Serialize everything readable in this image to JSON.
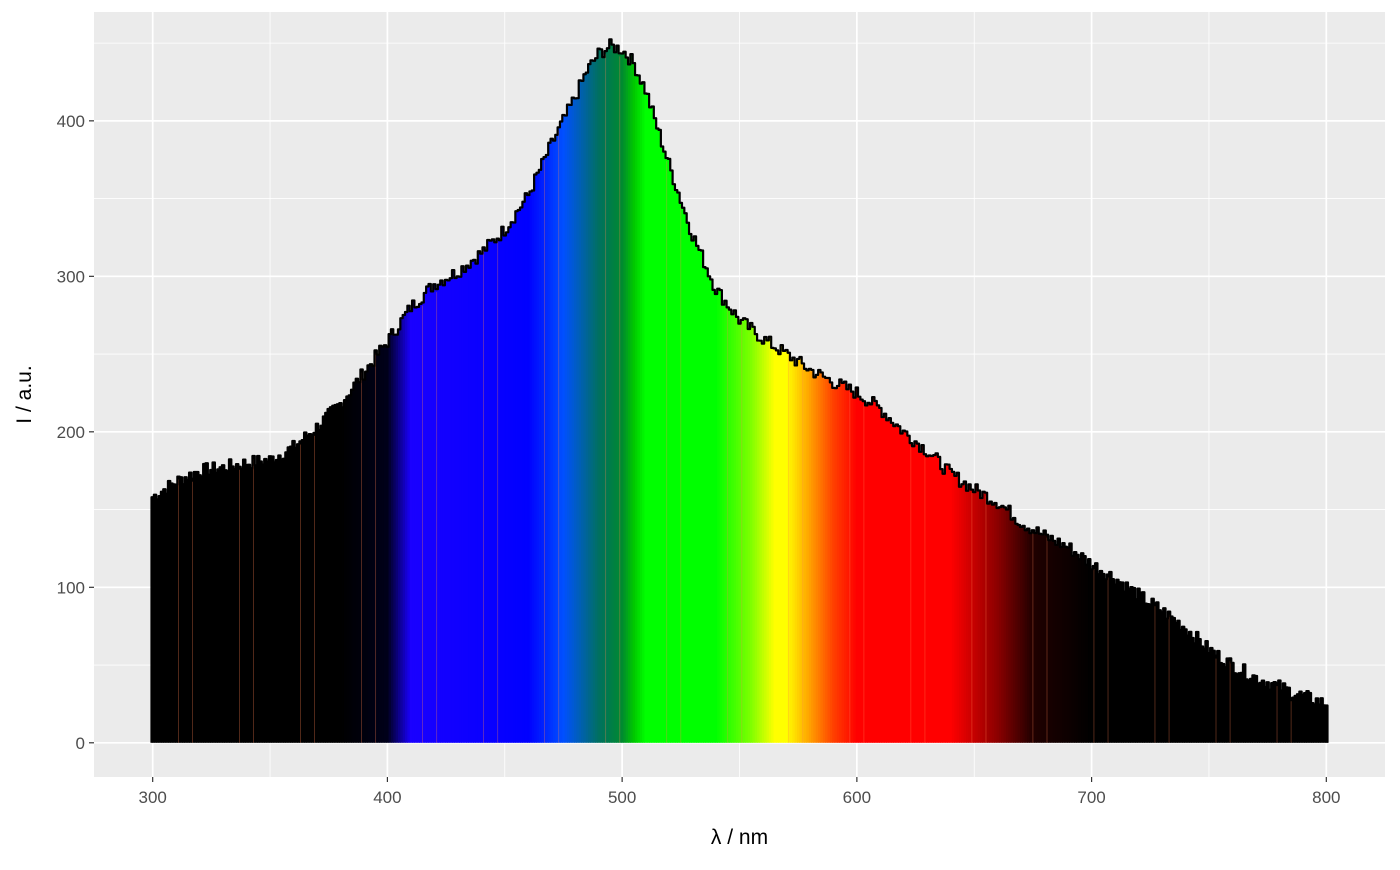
{
  "chart_data": {
    "type": "bar",
    "title": "",
    "xlabel": "λ / nm",
    "ylabel": "I / a.u.",
    "xlim": [
      275,
      825
    ],
    "ylim": [
      -22,
      470
    ],
    "x_ticks": [
      300,
      400,
      500,
      600,
      700,
      800
    ],
    "x_tick_labels": [
      "300",
      "400",
      "500",
      "600",
      "700",
      "800"
    ],
    "y_ticks": [
      0,
      100,
      200,
      300,
      400
    ],
    "y_tick_labels": [
      "0",
      "100",
      "200",
      "300",
      "400"
    ],
    "grid": true,
    "legend": "none",
    "panel_background": "#EBEBEB",
    "grid_color": "#FFFFFF",
    "outline_color": "#000000",
    "bar_width_nm": 1,
    "x_range_nm": [
      300,
      800
    ],
    "intensity_profile": {
      "x": [
        300,
        310,
        320,
        330,
        340,
        350,
        360,
        370,
        380,
        390,
        400,
        410,
        420,
        430,
        440,
        450,
        460,
        470,
        480,
        485,
        490,
        495,
        500,
        505,
        510,
        520,
        530,
        540,
        550,
        560,
        570,
        580,
        590,
        600,
        610,
        620,
        630,
        640,
        650,
        660,
        670,
        680,
        690,
        700,
        710,
        720,
        730,
        740,
        750,
        760,
        770,
        780,
        790,
        800
      ],
      "y": [
        158,
        168,
        175,
        177,
        180,
        182,
        190,
        203,
        218,
        238,
        258,
        280,
        295,
        303,
        315,
        330,
        352,
        385,
        415,
        432,
        443,
        448,
        446,
        437,
        420,
        372,
        327,
        292,
        272,
        260,
        250,
        240,
        232,
        225,
        215,
        200,
        188,
        173,
        163,
        155,
        142,
        133,
        126,
        115,
        106,
        95,
        85,
        74,
        60,
        50,
        42,
        36,
        30,
        25
      ]
    },
    "color_stops": {
      "x": [
        300,
        380,
        400,
        410,
        460,
        475,
        490,
        500,
        505,
        510,
        540,
        555,
        565,
        570,
        580,
        590,
        600,
        640,
        660,
        675,
        700
      ],
      "colors": [
        "#000000",
        "#000000",
        "#00001A",
        "#1A00FF",
        "#0000FF",
        "#0050FF",
        "#007060",
        "#008A30",
        "#00C800",
        "#00FF00",
        "#00FF00",
        "#80FF00",
        "#FFFF00",
        "#FFFF00",
        "#FFA000",
        "#FF4000",
        "#FF0000",
        "#FF0000",
        "#8B0000",
        "#200000",
        "#000000"
      ]
    },
    "streak_color": "#FF7F50"
  }
}
